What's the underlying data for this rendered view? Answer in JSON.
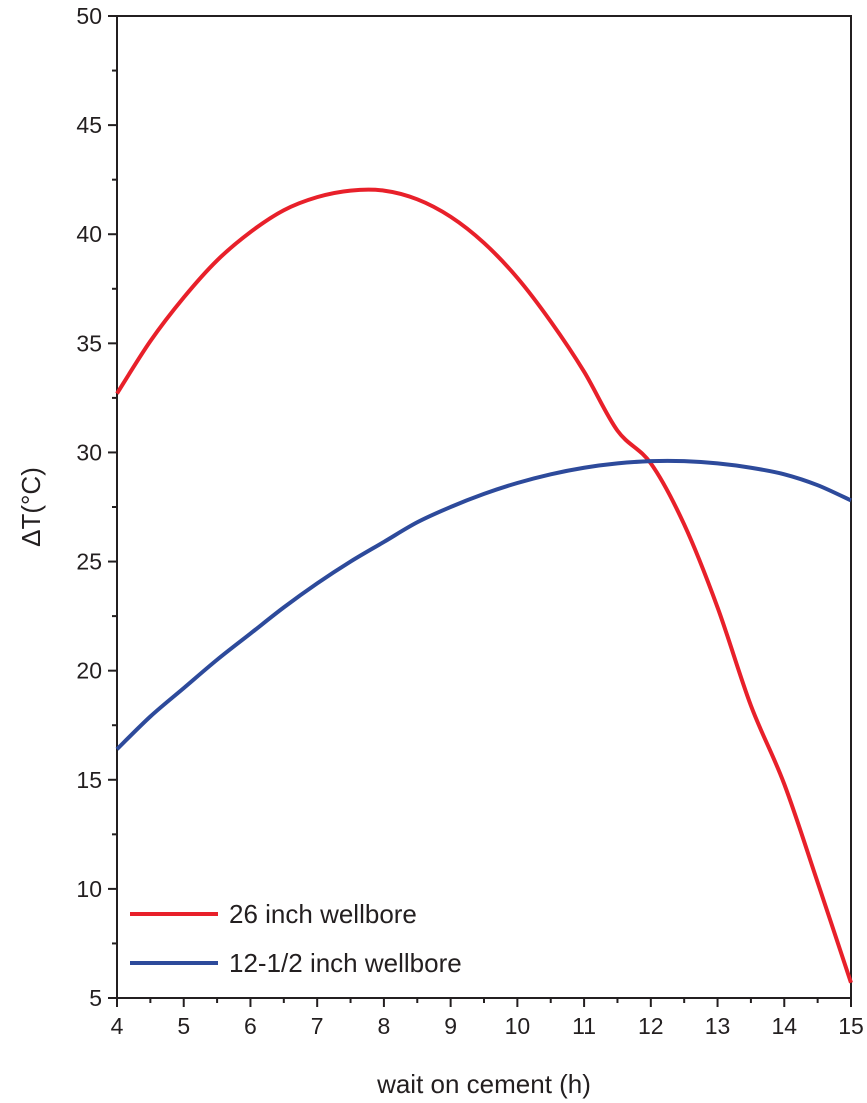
{
  "chart_data": {
    "type": "line",
    "title": "",
    "xlabel": "wait on cement (h)",
    "ylabel": "ΔT(°C)",
    "xlim": [
      4,
      15
    ],
    "ylim": [
      5,
      50
    ],
    "xticks": [
      4,
      5,
      6,
      7,
      8,
      9,
      10,
      11,
      12,
      13,
      14,
      15
    ],
    "yticks": [
      5,
      10,
      15,
      20,
      25,
      30,
      35,
      40,
      45,
      50
    ],
    "grid": false,
    "legend_position": "bottom-left",
    "x": [
      4,
      4.5,
      5,
      5.5,
      6,
      6.5,
      7,
      7.5,
      8,
      8.5,
      9,
      9.5,
      10,
      10.5,
      11,
      11.5,
      12,
      12.5,
      13,
      13.5,
      14,
      14.5,
      15
    ],
    "series": [
      {
        "name": "26 inch wellbore",
        "color": "#e8202a",
        "values": [
          32.7,
          35.1,
          37.1,
          38.8,
          40.1,
          41.1,
          41.7,
          42.0,
          42.0,
          41.6,
          40.8,
          39.6,
          38.0,
          36.0,
          33.7,
          31.0,
          29.5,
          26.7,
          22.9,
          18.4,
          14.8,
          10.3,
          5.7
        ]
      },
      {
        "name": "12-1/2 inch wellbore",
        "color": "#2d4a9b",
        "values": [
          16.4,
          17.9,
          19.2,
          20.5,
          21.7,
          22.9,
          24.0,
          25.0,
          25.9,
          26.8,
          27.5,
          28.1,
          28.6,
          29.0,
          29.3,
          29.5,
          29.6,
          29.6,
          29.5,
          29.3,
          29.0,
          28.5,
          27.8
        ]
      }
    ]
  }
}
